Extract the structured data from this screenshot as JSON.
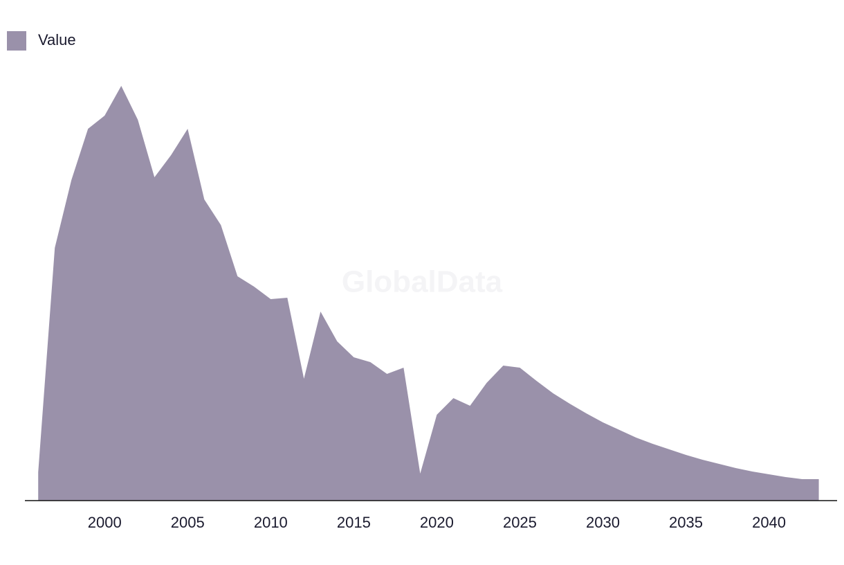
{
  "chart_data": {
    "type": "area",
    "watermark": "GlobalData",
    "x": [
      1996,
      1997,
      1998,
      1999,
      2000,
      2001,
      2002,
      2003,
      2004,
      2005,
      2006,
      2007,
      2008,
      2009,
      2010,
      2011,
      2012,
      2013,
      2014,
      2015,
      2016,
      2017,
      2018,
      2019,
      2020,
      2021,
      2022,
      2023,
      2024,
      2025,
      2026,
      2027,
      2028,
      2029,
      2030,
      2031,
      2032,
      2033,
      2034,
      2035,
      2036,
      2037,
      2038,
      2039,
      2040,
      2041,
      2042,
      2043
    ],
    "series": [
      {
        "name": "Value",
        "color": "#9a91aa",
        "values": [
          41,
          365,
          463,
          537,
          556,
          599,
          550,
          467,
          499,
          537,
          435,
          398,
          324,
          309,
          291,
          293,
          176,
          273,
          230,
          207,
          200,
          183,
          192,
          39,
          124,
          148,
          137,
          170,
          195,
          192,
          173,
          155,
          140,
          126,
          113,
          102,
          91,
          82,
          74,
          66,
          59,
          53,
          47,
          42,
          38,
          34,
          31,
          31
        ]
      }
    ],
    "xlim": [
      1995.2,
      2044.1
    ],
    "xticks": [
      2000,
      2005,
      2010,
      2015,
      2020,
      2025,
      2030,
      2035,
      2040
    ],
    "ylim": [
      0,
      623
    ],
    "legend": "top-left"
  }
}
